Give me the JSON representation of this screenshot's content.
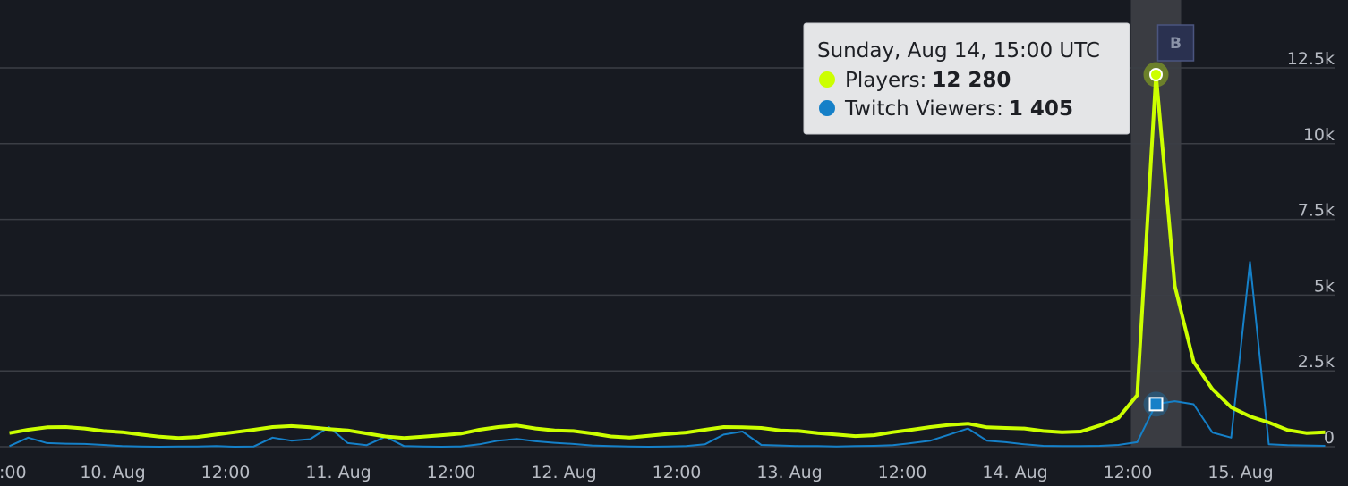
{
  "chart_data": {
    "type": "line",
    "x": [
      "Aug 9, 13:00",
      "Aug 9, 15:00",
      "Aug 9, 17:00",
      "Aug 9, 19:00",
      "Aug 9, 21:00",
      "Aug 9, 23:00",
      "Aug 10, 01:00",
      "Aug 10, 03:00",
      "Aug 10, 05:00",
      "Aug 10, 07:00",
      "Aug 10, 09:00",
      "Aug 10, 11:00",
      "Aug 10, 13:00",
      "Aug 10, 15:00",
      "Aug 10, 17:00",
      "Aug 10, 19:00",
      "Aug 10, 21:00",
      "Aug 10, 23:00",
      "Aug 11, 01:00",
      "Aug 11, 03:00",
      "Aug 11, 05:00",
      "Aug 11, 07:00",
      "Aug 11, 09:00",
      "Aug 11, 11:00",
      "Aug 11, 13:00",
      "Aug 11, 15:00",
      "Aug 11, 17:00",
      "Aug 11, 19:00",
      "Aug 11, 21:00",
      "Aug 11, 23:00",
      "Aug 12, 01:00",
      "Aug 12, 03:00",
      "Aug 12, 05:00",
      "Aug 12, 07:00",
      "Aug 12, 09:00",
      "Aug 12, 11:00",
      "Aug 12, 13:00",
      "Aug 12, 15:00",
      "Aug 12, 17:00",
      "Aug 12, 19:00",
      "Aug 12, 21:00",
      "Aug 12, 23:00",
      "Aug 13, 01:00",
      "Aug 13, 03:00",
      "Aug 13, 05:00",
      "Aug 13, 07:00",
      "Aug 13, 09:00",
      "Aug 13, 11:00",
      "Aug 13, 13:00",
      "Aug 13, 15:00",
      "Aug 13, 17:00",
      "Aug 13, 19:00",
      "Aug 13, 21:00",
      "Aug 13, 23:00",
      "Aug 14, 01:00",
      "Aug 14, 03:00",
      "Aug 14, 05:00",
      "Aug 14, 07:00",
      "Aug 14, 09:00",
      "Aug 14, 11:00",
      "Aug 14, 13:00",
      "Aug 14, 15:00",
      "Aug 14, 17:00",
      "Aug 14, 19:00",
      "Aug 14, 21:00",
      "Aug 14, 23:00",
      "Aug 15, 01:00",
      "Aug 15, 03:00",
      "Aug 15, 05:00",
      "Aug 15, 07:00",
      "Aug 15, 09:00"
    ],
    "series": [
      {
        "color": "#ccff00",
        "values": [
          450,
          560,
          640,
          650,
          600,
          520,
          480,
          400,
          330,
          290,
          320,
          400,
          480,
          560,
          650,
          680,
          640,
          580,
          540,
          440,
          340,
          290,
          330,
          380,
          430,
          560,
          650,
          700,
          600,
          540,
          520,
          440,
          340,
          300,
          360,
          420,
          470,
          560,
          650,
          640,
          620,
          540,
          520,
          450,
          400,
          350,
          380,
          480,
          560,
          650,
          720,
          760,
          640,
          620,
          600,
          520,
          480,
          500,
          700,
          950,
          1700,
          12280,
          5300,
          2800,
          1900,
          1300,
          1000,
          800,
          550,
          450,
          480
        ]
      },
      {
        "color": "#1580c8",
        "values": [
          20,
          300,
          120,
          100,
          90,
          60,
          20,
          10,
          0,
          10,
          10,
          20,
          0,
          10,
          300,
          200,
          250,
          650,
          120,
          50,
          330,
          20,
          10,
          0,
          10,
          80,
          200,
          260,
          180,
          130,
          90,
          40,
          20,
          10,
          0,
          10,
          20,
          80,
          400,
          500,
          60,
          40,
          20,
          20,
          10,
          20,
          30,
          50,
          120,
          200,
          400,
          600,
          200,
          150,
          80,
          30,
          20,
          20,
          30,
          60,
          150,
          1405,
          1500,
          1400,
          470,
          300,
          6100,
          80,
          50,
          40,
          30
        ]
      }
    ],
    "xlim": [
      "Aug 9, 12:00",
      "Aug 15, 10:00"
    ],
    "xticks": [
      {
        "value": "Aug 9, 12:00",
        "label": ":00"
      },
      {
        "value": "Aug 10, 00:00",
        "label": "10. Aug"
      },
      {
        "value": "Aug 10, 12:00",
        "label": "12:00"
      },
      {
        "value": "Aug 11, 00:00",
        "label": "11. Aug"
      },
      {
        "value": "Aug 11, 12:00",
        "label": "12:00"
      },
      {
        "value": "Aug 12, 00:00",
        "label": "12. Aug"
      },
      {
        "value": "Aug 12, 12:00",
        "label": "12:00"
      },
      {
        "value": "Aug 13, 00:00",
        "label": "13. Aug"
      },
      {
        "value": "Aug 13, 12:00",
        "label": "12:00"
      },
      {
        "value": "Aug 14, 00:00",
        "label": "14. Aug"
      },
      {
        "value": "Aug 14, 12:00",
        "label": "12:00"
      },
      {
        "value": "Aug 15, 00:00",
        "label": "15. Aug"
      }
    ],
    "ylim": [
      0,
      12500
    ],
    "yticks": [
      0,
      {
        "value": 2500,
        "label": "2.5k"
      },
      {
        "value": 5000,
        "label": "5k"
      },
      {
        "value": 7500,
        "label": "7.5k"
      },
      {
        "value": 10000,
        "label": "10k"
      },
      {
        "value": 12500,
        "label": "12.5k"
      }
    ],
    "grid": true,
    "highlight": {
      "label": "B",
      "start": "Aug 14, 12:20",
      "end": "Aug 14, 17:40"
    },
    "hover_index": 61,
    "tooltip": {
      "title": "Sunday, Aug 14, 15:00 UTC",
      "rows": [
        {
          "label": "Players:",
          "value": "12 280"
        },
        {
          "label": "Twitch Viewers:",
          "value": "1 405"
        }
      ]
    }
  }
}
